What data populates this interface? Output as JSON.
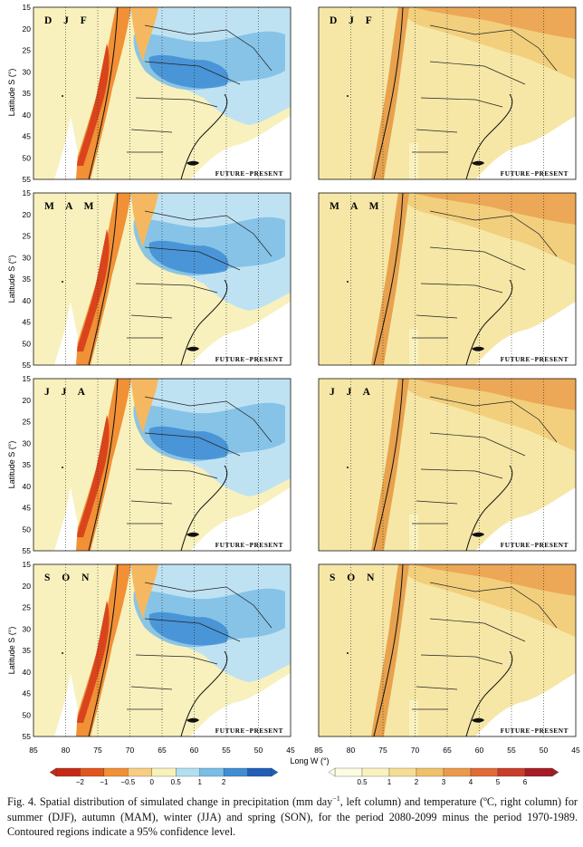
{
  "figure": {
    "y_axis_label": "Latitude S (°)",
    "x_axis_label": "Long W (°)",
    "lat_ticks": [
      "15",
      "20",
      "25",
      "30",
      "35",
      "40",
      "45",
      "50",
      "55"
    ],
    "lon_ticks": [
      "85",
      "80",
      "75",
      "70",
      "65",
      "60",
      "55",
      "50",
      "45"
    ],
    "panel_tag": "FUTURE−PRESENT",
    "seasons": [
      "D J F",
      "M A M",
      "J J A",
      "S O N"
    ],
    "precip_colorbar": {
      "labels": [
        "−2",
        "−1",
        "−0.5",
        "0",
        "0.5",
        "1",
        "2"
      ],
      "colors": [
        "#c62a17",
        "#e0561c",
        "#f19035",
        "#f8cd7f",
        "#f7f1ba",
        "#b3dff2",
        "#78bee7",
        "#3f8dd3",
        "#1f5fb8"
      ]
    },
    "temp_colorbar": {
      "labels": [
        "0.5",
        "1",
        "2",
        "3",
        "4",
        "5",
        "6"
      ],
      "colors": [
        "#fdfbe2",
        "#f9f2bf",
        "#f5de94",
        "#f0c06b",
        "#eb9a4b",
        "#e06b36",
        "#c93d2b",
        "#a51c24"
      ]
    }
  },
  "caption": {
    "before_sup": "Fig. 4. Spatial distribution of simulated change in precipitation (mm day",
    "sup": "−1",
    "after_sup": ", left column) and temperature (ºC, right column) for summer (DJF), autumn (MAM), winter (JJA) and spring (SON), for the period 2080-2099 minus the period 1970-1989. Contoured regions indicate a 95% confidence level."
  }
}
